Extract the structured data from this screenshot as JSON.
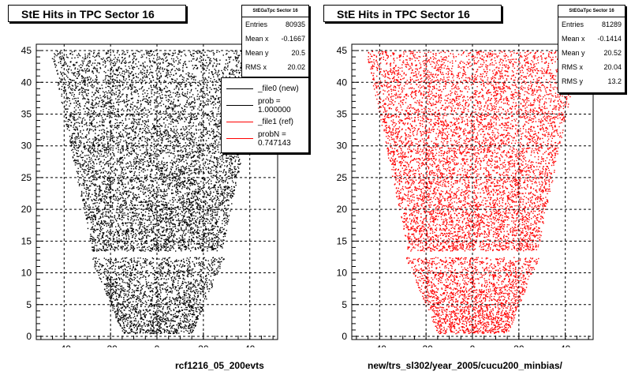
{
  "panels": [
    {
      "title": "StE Hits in TPC Sector 16",
      "xcaption": "rcf1216_05_200evts",
      "color": "#000000",
      "stats": {
        "header": "StEGaTpc Sector 16",
        "rows": [
          {
            "label": "Entries",
            "value": "80935"
          },
          {
            "label": "Mean x",
            "value": "-0.1667"
          },
          {
            "label": "Mean y",
            "value": "20.5"
          },
          {
            "label": "RMS x",
            "value": "20.02"
          }
        ]
      },
      "legend": [
        {
          "label": "_file0 (new)",
          "color": "#000000"
        },
        {
          "label": "prob = 1.000000",
          "color": "#000000"
        },
        {
          "label": "_file1 (ref)",
          "color": "#ff0000"
        },
        {
          "label": "probN = 0.747143",
          "color": "#ff0000"
        }
      ]
    },
    {
      "title": "StE Hits in TPC Sector 16",
      "xcaption": "new/trs_sl302/year_2005/cucu200_minbias/",
      "color": "#ff0000",
      "stats": {
        "header": "StEGaTpc Sector 16",
        "rows": [
          {
            "label": "Entries",
            "value": "81289"
          },
          {
            "label": "Mean x",
            "value": "-0.1414"
          },
          {
            "label": "Mean y",
            "value": "20.52"
          },
          {
            "label": "RMS x",
            "value": "20.04"
          },
          {
            "label": "RMS y",
            "value": "13.2"
          }
        ]
      }
    }
  ],
  "chart_data": [
    {
      "type": "scatter",
      "title": "StE Hits in TPC Sector 16",
      "xlim": [
        -52,
        52
      ],
      "ylim": [
        -0.5,
        46
      ],
      "xticks": [
        -40,
        -20,
        0,
        20,
        40
      ],
      "yticks": [
        0,
        5,
        10,
        15,
        20,
        25,
        30,
        35,
        40,
        45
      ],
      "grid": true,
      "color": "#000000",
      "entries": 80935,
      "outer_pad_rows": [
        45,
        13.5
      ],
      "inner_pad_rows": [
        12.5,
        0.5
      ],
      "outer_halfwidth_at_y": [
        [
          45,
          46
        ],
        [
          13.5,
          28
        ]
      ],
      "inner_halfwidth_at_y": [
        [
          12.5,
          29
        ],
        [
          0.5,
          15
        ]
      ],
      "pad_gap_y": 13
    },
    {
      "type": "scatter",
      "title": "StE Hits in TPC Sector 16",
      "xlim": [
        -52,
        52
      ],
      "ylim": [
        -0.5,
        46
      ],
      "xticks": [
        -40,
        -20,
        0,
        20,
        40
      ],
      "yticks": [
        0,
        5,
        10,
        15,
        20,
        25,
        30,
        35,
        40,
        45
      ],
      "grid": true,
      "color": "#ff0000",
      "entries": 81289,
      "outer_pad_rows": [
        45,
        13.5
      ],
      "inner_pad_rows": [
        12.5,
        0.5
      ],
      "outer_halfwidth_at_y": [
        [
          45,
          46
        ],
        [
          13.5,
          28
        ]
      ],
      "inner_halfwidth_at_y": [
        [
          12.5,
          29
        ],
        [
          0.5,
          15
        ]
      ],
      "pad_gap_y": 13
    }
  ]
}
